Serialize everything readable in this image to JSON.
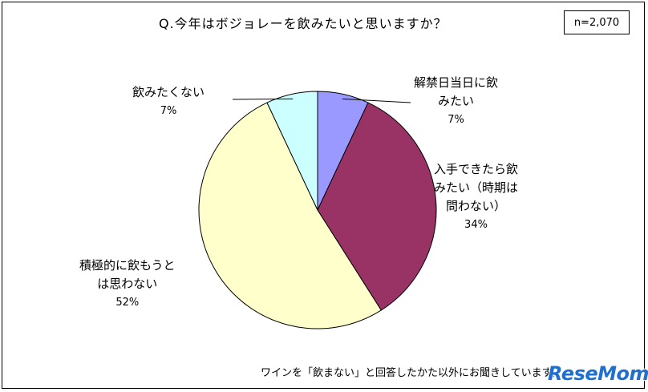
{
  "header": {
    "title": "Q.今年はボジョレーを飲みたいと思いますか？",
    "sample_size": "n=2,070"
  },
  "chart_data": {
    "type": "pie",
    "title": "Q.今年はボジョレーを飲みたいと思いますか？",
    "start_angle_deg": 0,
    "direction": "clockwise",
    "slices": [
      {
        "label": "解禁日当日に飲みたい",
        "value": 7,
        "display": "7%",
        "color": "#9999ff",
        "label_lines": [
          "解禁日当日に飲",
          "みたい"
        ]
      },
      {
        "label": "入手できたら飲みたい（時期は問わない）",
        "value": 34,
        "display": "34%",
        "color": "#993366",
        "label_lines": [
          "入手できたら飲",
          "みたい（時期は",
          "問わない）"
        ]
      },
      {
        "label": "積極的に飲もうとは思わない",
        "value": 52,
        "display": "52%",
        "color": "#ffffcc",
        "label_lines": [
          "積極的に飲もうと",
          "は思わない"
        ]
      },
      {
        "label": "飲みたくない",
        "value": 7,
        "display": "7%",
        "color": "#ccffff",
        "label_lines": [
          "飲みたくない"
        ]
      }
    ]
  },
  "footer": {
    "note": "ワインを「飲まない」と回答したかた以外にお聞きしています。",
    "watermark": "ReseMom"
  }
}
